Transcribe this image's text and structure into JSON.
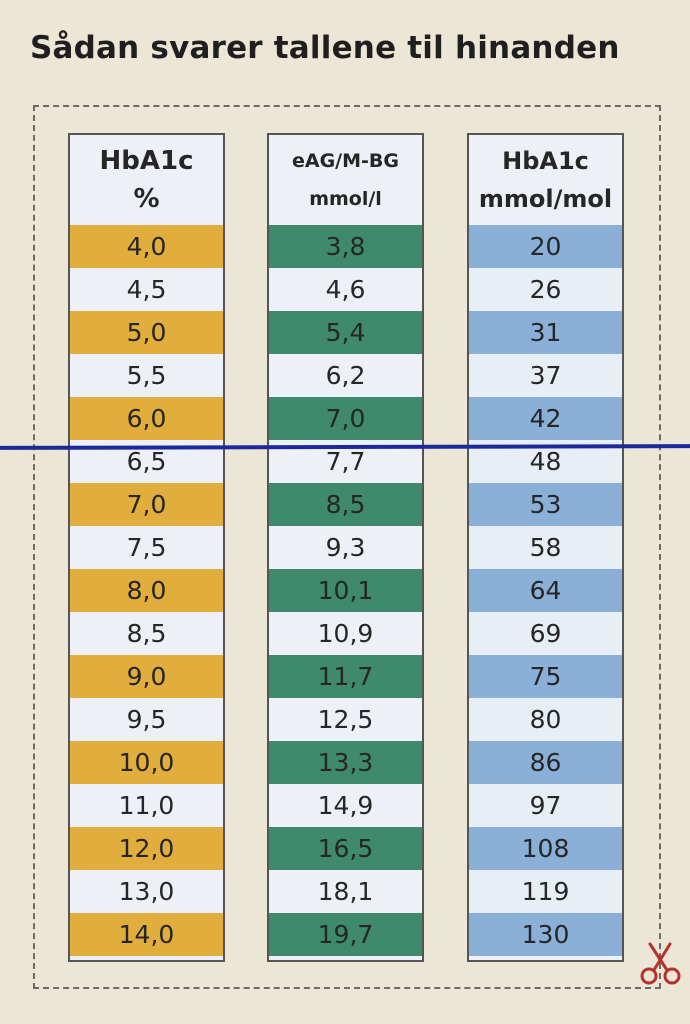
{
  "title": "Sådan svarer tallene til hinanden",
  "columns": [
    {
      "header_line1": "HbA1c",
      "header_line2": "%",
      "values": [
        "4,0",
        "4,5",
        "5,0",
        "5,5",
        "6,0",
        "6,5",
        "7,0",
        "7,5",
        "8,0",
        "8,5",
        "9,0",
        "9,5",
        "10,0",
        "11,0",
        "12,0",
        "13,0",
        "14,0"
      ]
    },
    {
      "header_line1": "eAG/M-BG",
      "header_line2": "mmol/l",
      "values": [
        "3,8",
        "4,6",
        "5,4",
        "6,2",
        "7,0",
        "7,7",
        "8,5",
        "9,3",
        "10,1",
        "10,9",
        "11,7",
        "12,5",
        "13,3",
        "14,9",
        "16,5",
        "18,1",
        "19,7"
      ]
    },
    {
      "header_line1": "HbA1c",
      "header_line2": "mmol/mol",
      "values": [
        "20",
        "26",
        "31",
        "37",
        "42",
        "48",
        "53",
        "58",
        "64",
        "69",
        "75",
        "80",
        "86",
        "97",
        "108",
        "119",
        "130"
      ]
    }
  ],
  "colors": {
    "hba1c_percent_band": "#e1ad3c",
    "eag_band": "#3f8a6c",
    "mmol_mol_band": "#8ab0d8",
    "pen_line": "#1b2a9a",
    "scissors": "#b8302e"
  },
  "icons": {
    "scissors": "scissors-icon"
  }
}
